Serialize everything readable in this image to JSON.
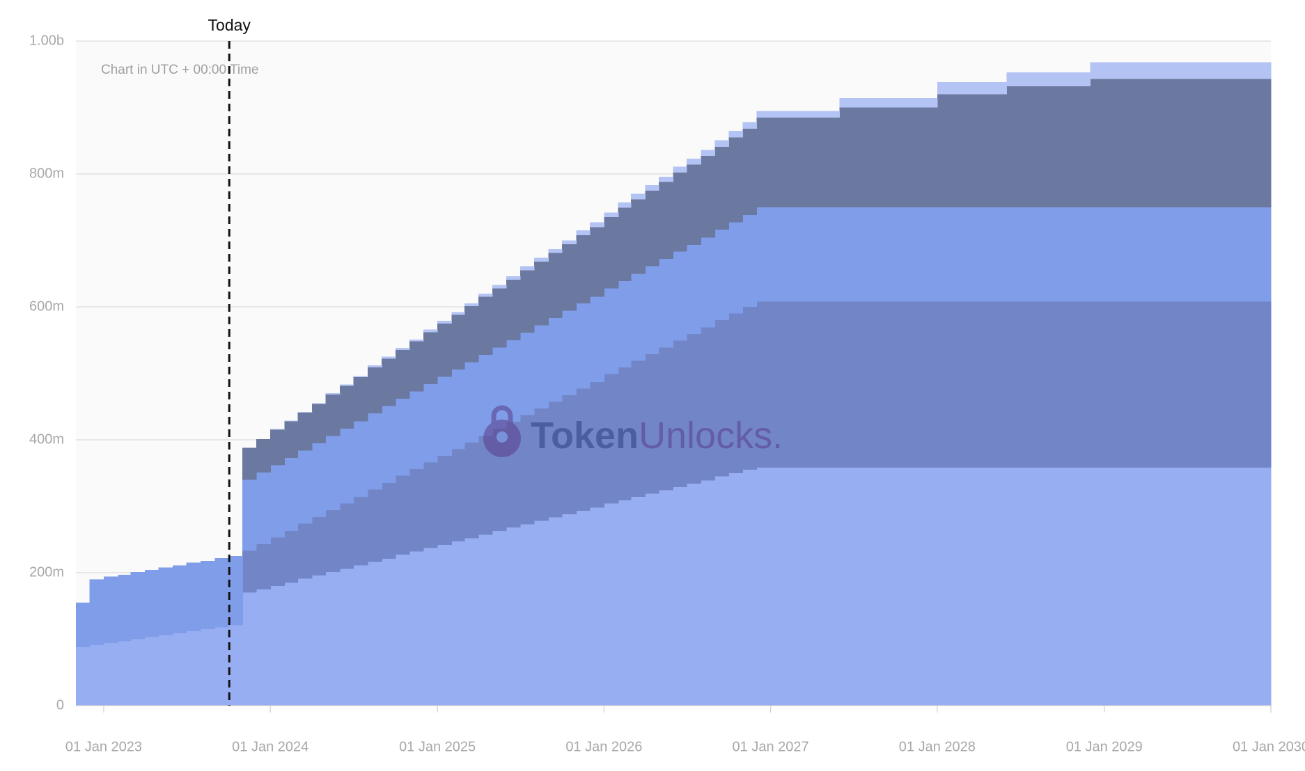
{
  "chart_data": {
    "type": "stacked-area",
    "note_text": "Chart in UTC + 00:00 Time",
    "watermark": [
      "Token",
      "Unlocks."
    ],
    "annotations": [
      {
        "text": "Today",
        "x": "2023-10-03"
      }
    ],
    "x": [
      "2022-11-01",
      "2022-12-01",
      "2023-01-01",
      "2023-02-01",
      "2023-03-01",
      "2023-04-01",
      "2023-05-01",
      "2023-06-01",
      "2023-07-01",
      "2023-08-01",
      "2023-09-01",
      "2023-10-01",
      "2023-11-01",
      "2023-12-01",
      "2024-01-01",
      "2024-02-01",
      "2024-03-01",
      "2024-04-01",
      "2024-05-01",
      "2024-06-01",
      "2024-07-01",
      "2024-08-01",
      "2024-09-01",
      "2024-10-01",
      "2024-11-01",
      "2024-12-01",
      "2025-01-01",
      "2025-02-01",
      "2025-03-01",
      "2025-04-01",
      "2025-05-01",
      "2025-06-01",
      "2025-07-01",
      "2025-08-01",
      "2025-09-01",
      "2025-10-01",
      "2025-11-01",
      "2025-12-01",
      "2026-01-01",
      "2026-02-01",
      "2026-03-01",
      "2026-04-01",
      "2026-05-01",
      "2026-06-01",
      "2026-07-01",
      "2026-08-01",
      "2026-09-01",
      "2026-10-01",
      "2026-11-01",
      "2026-12-01",
      "2027-06-01",
      "2028-01-01",
      "2028-06-01",
      "2028-12-01",
      "2029-12-01"
    ],
    "series": [
      {
        "color": "#98aef2",
        "values": [
          88,
          91,
          94,
          97,
          100,
          103,
          106,
          109,
          112,
          115,
          118,
          121,
          170,
          175,
          180,
          185,
          191,
          196,
          201,
          206,
          211,
          216,
          221,
          227,
          232,
          237,
          242,
          247,
          252,
          257,
          263,
          268,
          273,
          278,
          283,
          288,
          293,
          298,
          304,
          309,
          314,
          319,
          324,
          329,
          334,
          339,
          345,
          350,
          355,
          358,
          358,
          358,
          358,
          358,
          358
        ]
      },
      {
        "color": "#7185c7",
        "values": [
          0,
          0,
          0,
          0,
          0,
          0,
          0,
          0,
          0,
          0,
          0,
          0,
          63,
          68,
          73,
          78,
          83,
          88,
          93,
          98,
          103,
          109,
          114,
          119,
          124,
          129,
          134,
          139,
          144,
          149,
          154,
          159,
          164,
          169,
          174,
          179,
          184,
          189,
          195,
          200,
          205,
          210,
          215,
          220,
          225,
          230,
          235,
          240,
          245,
          250,
          250,
          250,
          250,
          250,
          250
        ]
      },
      {
        "color": "#7f9de8",
        "values": [
          67,
          99,
          100,
          100,
          101,
          101,
          102,
          102,
          103,
          103,
          104,
          104,
          107,
          108,
          109,
          110,
          110,
          111,
          112,
          113,
          114,
          115,
          116,
          116,
          117,
          118,
          119,
          120,
          121,
          122,
          122,
          123,
          124,
          125,
          126,
          127,
          128,
          128,
          129,
          130,
          131,
          132,
          133,
          134,
          134,
          135,
          136,
          137,
          138,
          142,
          142,
          142,
          142,
          142,
          142
        ]
      },
      {
        "color": "#6b789f",
        "values": [
          0,
          0,
          0,
          0,
          0,
          0,
          0,
          0,
          0,
          0,
          0,
          0,
          48,
          50,
          53,
          55,
          57,
          59,
          62,
          64,
          66,
          69,
          71,
          73,
          75,
          78,
          80,
          82,
          84,
          87,
          89,
          91,
          94,
          96,
          98,
          100,
          103,
          105,
          107,
          110,
          112,
          114,
          116,
          119,
          121,
          123,
          125,
          128,
          130,
          135,
          150,
          170,
          182,
          193,
          193
        ]
      },
      {
        "color": "#b3c3f3",
        "values": [
          0,
          0,
          0,
          0,
          0,
          0,
          0,
          0,
          0,
          0,
          0,
          0,
          0,
          0,
          1,
          1,
          1,
          1,
          2,
          2,
          2,
          3,
          3,
          3,
          3,
          4,
          4,
          4,
          4,
          5,
          5,
          5,
          6,
          6,
          6,
          6,
          7,
          7,
          7,
          8,
          8,
          8,
          8,
          9,
          9,
          9,
          10,
          10,
          10,
          10,
          14,
          18,
          21,
          25,
          25
        ]
      }
    ],
    "xlim": [
      "2022-11-01",
      "2030-01-01"
    ],
    "xticks": [
      {
        "value": "2023-01-01",
        "label": "01 Jan 2023"
      },
      {
        "value": "2024-01-01",
        "label": "01 Jan 2024"
      },
      {
        "value": "2025-01-01",
        "label": "01 Jan 2025"
      },
      {
        "value": "2026-01-01",
        "label": "01 Jan 2026"
      },
      {
        "value": "2027-01-01",
        "label": "01 Jan 2027"
      },
      {
        "value": "2028-01-01",
        "label": "01 Jan 2028"
      },
      {
        "value": "2029-01-01",
        "label": "01 Jan 2029"
      },
      {
        "value": "2030-01-01",
        "label": "01 Jan 2030"
      }
    ],
    "ylim": [
      0,
      1000
    ],
    "yticks": [
      0,
      {
        "value": 200,
        "label": "200m"
      },
      {
        "value": 400,
        "label": "400m"
      },
      {
        "value": 600,
        "label": "600m"
      },
      {
        "value": 800,
        "label": "800m"
      },
      {
        "value": 1000,
        "label": "1.00b"
      }
    ],
    "grid": true
  }
}
